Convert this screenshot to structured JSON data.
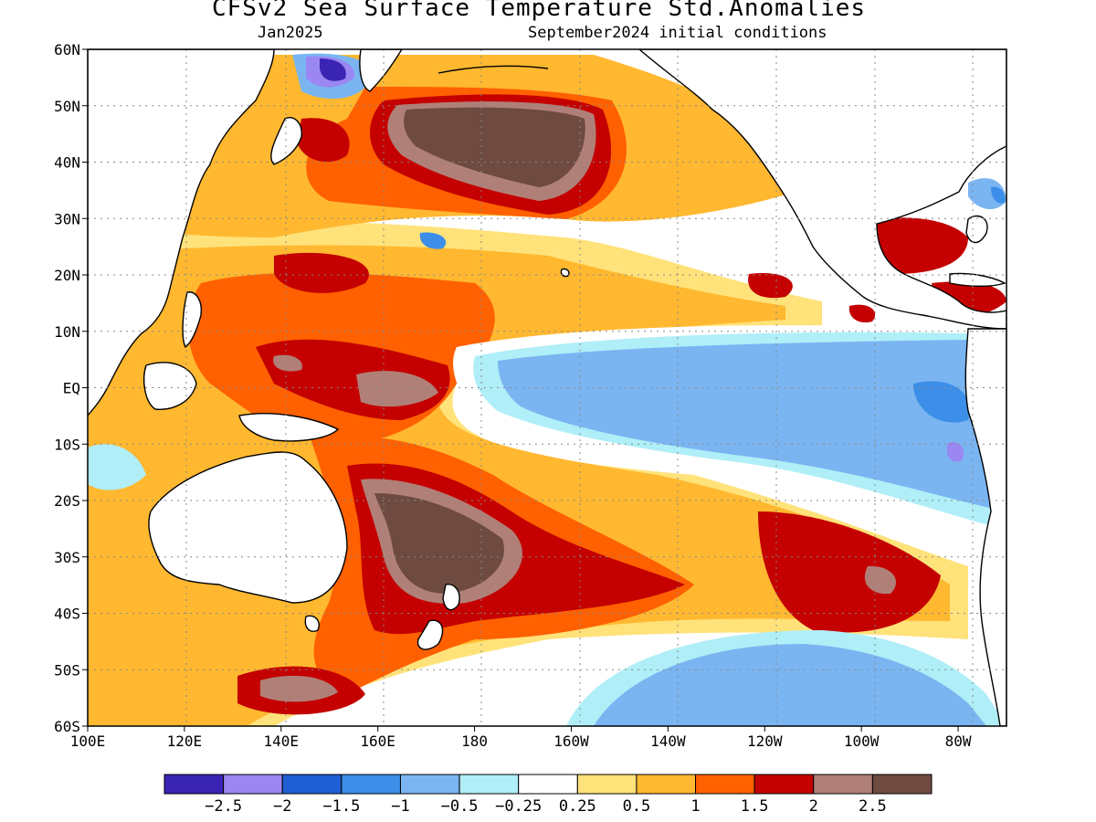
{
  "title": "CFSv2 Sea Surface Temperature Std.Anomalies",
  "subtitle_left": "Jan2025",
  "subtitle_right": "September2024 initial conditions",
  "lat_labels": [
    "60N",
    "50N",
    "40N",
    "30N",
    "20N",
    "10N",
    "EQ",
    "10S",
    "20S",
    "30S",
    "40S",
    "50S",
    "60S"
  ],
  "lon_labels": [
    "100E",
    "120E",
    "140E",
    "160E",
    "180",
    "160W",
    "140W",
    "120W",
    "100W",
    "80W"
  ],
  "colorbar": {
    "colors": [
      "#3a24b4",
      "#9b87f2",
      "#1f5fd4",
      "#3d8ee8",
      "#7ab5f2",
      "#b0eef8",
      "#ffffff",
      "#ffe27a",
      "#ffb830",
      "#ff6000",
      "#c40000",
      "#b08078",
      "#6e4a40"
    ],
    "labels": [
      "-2.5",
      "-2",
      "-1.5",
      "-1",
      "-0.5",
      "-0.25",
      "0.25",
      "0.5",
      "1",
      "1.5",
      "2",
      "2.5"
    ]
  }
}
